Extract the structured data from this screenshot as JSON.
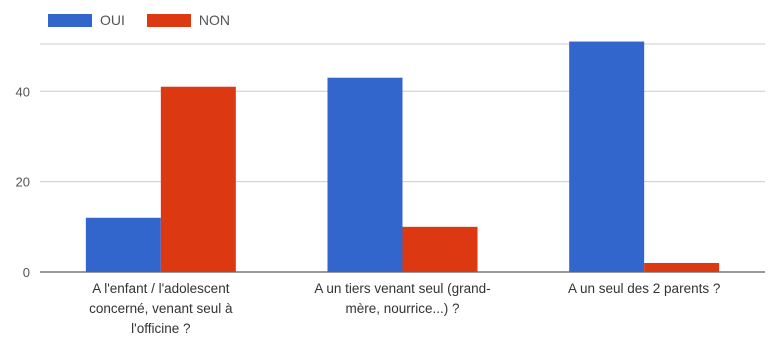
{
  "chart_data": {
    "type": "bar",
    "categories": [
      [
        "A l'enfant / l'adolescent",
        "concerné, venant seul à",
        "l'officine ?"
      ],
      [
        "A un tiers venant seul (grand-",
        "mère, nourrice...) ?"
      ],
      [
        "A un seul des 2 parents ?"
      ]
    ],
    "series": [
      {
        "name": "OUI",
        "color": "#3366cc",
        "values": [
          12,
          43,
          51
        ]
      },
      {
        "name": "NON",
        "color": "#dc3912",
        "values": [
          41,
          10,
          2
        ]
      }
    ],
    "ylim": [
      0,
      54
    ],
    "yticks": [
      0,
      20,
      40
    ],
    "grid": true,
    "legend_position": "top-left",
    "title": "",
    "xlabel": "",
    "ylabel": ""
  }
}
